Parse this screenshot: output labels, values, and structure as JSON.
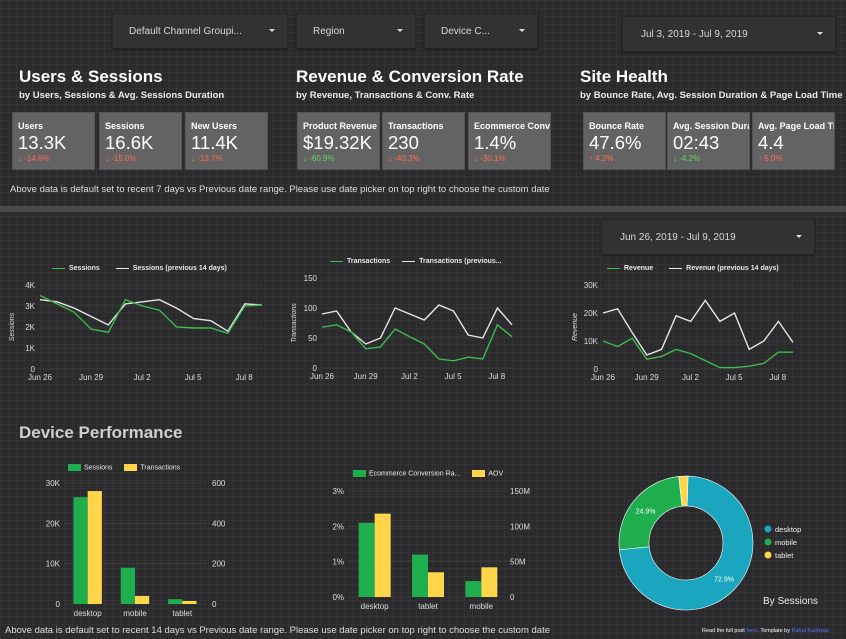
{
  "filters": {
    "channel": "Default Channel Groupi...",
    "region": "Region",
    "device": "Device C...",
    "date_top": "Jul 3, 2019 - Jul 9, 2019",
    "date_mid": "Jun 26, 2019 - Jul 9, 2019"
  },
  "sections": {
    "users": {
      "title": "Users & Sessions",
      "subtitle": "by Users, Sessions & Avg. Sessions Duration"
    },
    "revenue": {
      "title": "Revenue & Conversion Rate",
      "subtitle": "by Revenue, Transactions & Conv. Rate"
    },
    "health": {
      "title": "Site Health",
      "subtitle": "by Bounce Rate, Avg. Session Duration & Page Load Time"
    },
    "device": {
      "title": "Device Performance"
    }
  },
  "kpis": [
    {
      "label": "Users",
      "value": "13.3K",
      "delta": "↓ -14.6%",
      "trend": "neg"
    },
    {
      "label": "Sessions",
      "value": "16.6K",
      "delta": "↓ -15.0%",
      "trend": "neg"
    },
    {
      "label": "New Users",
      "value": "11.4K",
      "delta": "↓ -13.7%",
      "trend": "neg"
    },
    {
      "label": "Product Revenue",
      "value": "$19.32K",
      "delta": "↓ -60.9%",
      "trend": "pos"
    },
    {
      "label": "Transactions",
      "value": "230",
      "delta": "↓ -40.3%",
      "trend": "neg"
    },
    {
      "label": "Ecommerce Conversion Rate",
      "value": "1.4%",
      "delta": "↓ -30.1%",
      "trend": "neg"
    },
    {
      "label": "Bounce Rate",
      "value": "47.6%",
      "delta": "↑ 4.2%",
      "trend": "neg"
    },
    {
      "label": "Avg. Session Duration",
      "value": "02:43",
      "delta": "↓ -4.2%",
      "trend": "pos"
    },
    {
      "label": "Avg. Page Load Time",
      "value": "4.4",
      "delta": "↑ 5.0%",
      "trend": "neg"
    }
  ],
  "notes": {
    "top": "Above data is default set to recent 7 days vs Previous date range. Please use date picker on top right to choose the custom date",
    "bottom": "Above data is default set to recent 14 days vs Previous date range. Please use date picker on top right to choose the custom date",
    "read_prefix": "Read the full post",
    "read_link": "here",
    "template_prefix": ". Template by",
    "template_link": "Rahul Kashyap"
  },
  "colors": {
    "current": "#3fb950",
    "previous": "#e6e6e6",
    "green_bar": "#1fae4e",
    "yellow_bar": "#ffd54a",
    "teal": "#1aa6bf",
    "red": "#ff6b5b",
    "green": "#62d26f"
  },
  "chart_data": [
    {
      "type": "line",
      "x_ticks": [
        "Jun 26",
        "Jun 29",
        "Jul 2",
        "Jul 5",
        "Jul 8"
      ],
      "ylabel": "Sessions",
      "yticks": [
        "0",
        "1K",
        "2K",
        "3K",
        "4K"
      ],
      "ylim": [
        0,
        4000
      ],
      "series": [
        {
          "name": "Sessions",
          "values": [
            3500,
            3100,
            2700,
            1900,
            1750,
            3300,
            3000,
            2800,
            2000,
            1950,
            1950,
            1700,
            3000,
            3050
          ]
        },
        {
          "name": "Sessions (previous 14 days)",
          "values": [
            3300,
            3200,
            2900,
            2500,
            2100,
            3100,
            3200,
            3300,
            2900,
            2400,
            2300,
            1800,
            3100,
            3050
          ]
        }
      ]
    },
    {
      "type": "line",
      "x_ticks": [
        "Jun 26",
        "Jun 29",
        "Jul 2",
        "Jul 5",
        "Jul 8"
      ],
      "ylabel": "Transactions",
      "yticks": [
        "0",
        "50",
        "100",
        "150"
      ],
      "ylim": [
        0,
        150
      ],
      "series": [
        {
          "name": "Transactions",
          "values": [
            68,
            72,
            60,
            32,
            35,
            65,
            52,
            40,
            15,
            12,
            18,
            15,
            72,
            52
          ]
        },
        {
          "name": "Transactions (previous...",
          "values": [
            90,
            95,
            60,
            40,
            50,
            100,
            90,
            80,
            105,
            95,
            55,
            50,
            100,
            72
          ]
        }
      ]
    },
    {
      "type": "line",
      "x_ticks": [
        "Jun 26",
        "Jun 29",
        "Jul 2",
        "Jul 5",
        "Jul 8"
      ],
      "ylabel": "Revenue",
      "yticks": [
        "0",
        "10K",
        "20K",
        "30K"
      ],
      "ylim": [
        0,
        30000
      ],
      "series": [
        {
          "name": "Revenue",
          "values": [
            10000,
            8000,
            11000,
            3500,
            4500,
            7000,
            5500,
            3000,
            500,
            500,
            1000,
            2000,
            6000,
            6000
          ]
        },
        {
          "name": "Revenue (previous 14 days)",
          "values": [
            20000,
            21500,
            13000,
            5000,
            7000,
            19000,
            17000,
            24500,
            17000,
            20000,
            7000,
            10000,
            17000,
            9500
          ]
        }
      ]
    },
    {
      "type": "bar",
      "categories": [
        "desktop",
        "mobile",
        "tablet"
      ],
      "left_ticks": [
        "0",
        "10K",
        "20K",
        "30K"
      ],
      "right_ticks": [
        "0",
        "200",
        "400",
        "600"
      ],
      "left_max": 30000,
      "right_max": 600,
      "series": [
        {
          "name": "Sessions",
          "axis": "left",
          "values": [
            26500,
            9000,
            1200
          ]
        },
        {
          "name": "Transactions",
          "axis": "right",
          "values": [
            560,
            40,
            15
          ]
        }
      ]
    },
    {
      "type": "bar",
      "categories": [
        "desktop",
        "tablet",
        "mobile"
      ],
      "left_ticks": [
        "0%",
        "1%",
        "2%",
        "3%"
      ],
      "right_ticks": [
        "0",
        "50M",
        "100M",
        "150M"
      ],
      "left_max": 3,
      "right_max": 150,
      "series": [
        {
          "name": "Ecommerce Conversion Ra...",
          "axis": "left",
          "values": [
            2.1,
            1.2,
            0.45
          ]
        },
        {
          "name": "AOV",
          "axis": "right",
          "values": [
            118,
            35,
            42
          ]
        }
      ]
    },
    {
      "type": "pie",
      "title": "By Sessions",
      "labels": [
        "desktop",
        "mobile",
        "tablet"
      ],
      "values": [
        72.9,
        24.9,
        2.2
      ],
      "shown_labels": [
        "72.9%",
        "24.9%",
        ""
      ],
      "colors": [
        "#1aa6bf",
        "#1fae4e",
        "#ffd54a"
      ]
    }
  ]
}
